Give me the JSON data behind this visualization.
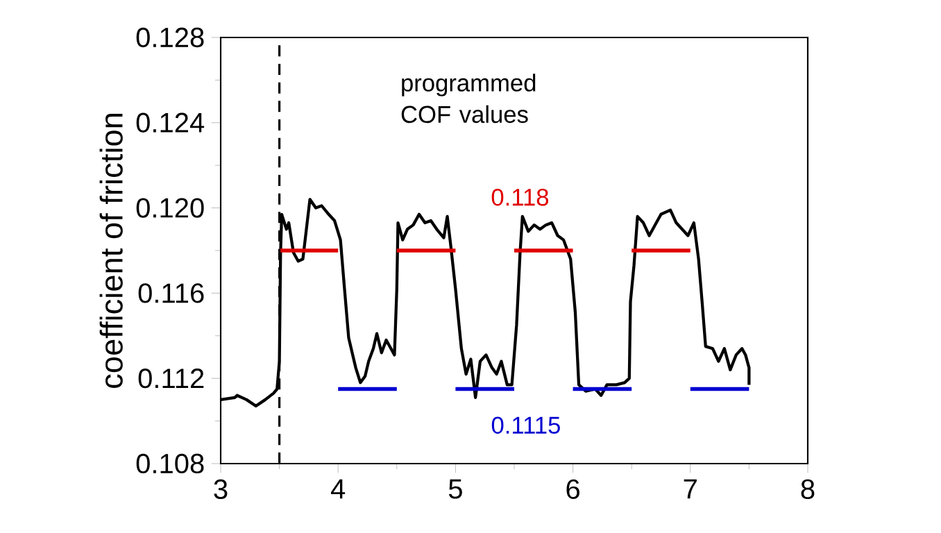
{
  "chart_data": {
    "type": "line",
    "ylabel": "coefficient of friction",
    "xlim": [
      3,
      8
    ],
    "xticks": [
      3,
      4,
      5,
      6,
      7,
      8
    ],
    "ylim": [
      0.108,
      0.128
    ],
    "yticks": [
      0.108,
      0.112,
      0.116,
      {
        "value": 0.12,
        "label": "0.120"
      },
      0.124,
      0.128
    ],
    "grid": false,
    "marker": "none",
    "ref_lines": [
      {
        "axis": "x",
        "value": 3.5,
        "color": "#000000",
        "line_style": "dashed"
      }
    ],
    "annotations": [
      "programmed COF values",
      "0.118",
      "0.1115"
    ],
    "series": [
      {
        "color": "#000000",
        "line_style": "solid",
        "x": [
          3.0,
          3.12,
          3.14,
          3.22,
          3.3,
          3.38,
          3.45,
          3.48,
          3.5,
          3.51,
          3.52,
          3.56,
          3.58,
          3.62,
          3.66,
          3.7,
          3.73,
          3.76,
          3.81,
          3.86,
          3.92,
          3.97,
          4.02,
          4.05,
          4.09,
          4.15,
          4.19,
          4.23,
          4.26,
          4.3,
          4.33,
          4.37,
          4.41,
          4.45,
          4.48,
          4.5,
          4.51,
          4.55,
          4.59,
          4.64,
          4.69,
          4.74,
          4.79,
          4.84,
          4.9,
          4.93,
          4.96,
          5.0,
          5.05,
          5.09,
          5.13,
          5.17,
          5.21,
          5.26,
          5.31,
          5.35,
          5.39,
          5.44,
          5.48,
          5.52,
          5.55,
          5.57,
          5.62,
          5.67,
          5.72,
          5.77,
          5.82,
          5.87,
          5.92,
          5.98,
          6.02,
          6.05,
          6.11,
          6.19,
          6.24,
          6.29,
          6.37,
          6.44,
          6.48,
          6.49,
          6.52,
          6.55,
          6.6,
          6.65,
          6.7,
          6.75,
          6.83,
          6.88,
          6.93,
          6.98,
          7.03,
          7.07,
          7.1,
          7.13,
          7.19,
          7.24,
          7.29,
          7.34,
          7.39,
          7.44,
          7.47,
          7.5,
          7.5
        ],
        "values": [
          0.111,
          0.1111,
          0.1112,
          0.111,
          0.1107,
          0.111,
          0.1113,
          0.1115,
          0.1128,
          0.1179,
          0.1197,
          0.119,
          0.1193,
          0.1179,
          0.1175,
          0.1176,
          0.119,
          0.1204,
          0.12,
          0.1201,
          0.1197,
          0.1194,
          0.1185,
          0.1165,
          0.1139,
          0.1125,
          0.1118,
          0.1121,
          0.1128,
          0.1134,
          0.1141,
          0.1132,
          0.1138,
          0.1134,
          0.1131,
          0.1162,
          0.1193,
          0.1185,
          0.119,
          0.1192,
          0.1197,
          0.1193,
          0.1194,
          0.119,
          0.1186,
          0.1196,
          0.1182,
          0.1162,
          0.1134,
          0.1122,
          0.1129,
          0.1111,
          0.1128,
          0.1131,
          0.1125,
          0.1122,
          0.1128,
          0.1117,
          0.1117,
          0.1145,
          0.1179,
          0.1196,
          0.1189,
          0.1192,
          0.119,
          0.1192,
          0.1193,
          0.1187,
          0.1185,
          0.1176,
          0.1151,
          0.1117,
          0.1114,
          0.1115,
          0.1112,
          0.1117,
          0.1117,
          0.1118,
          0.112,
          0.1156,
          0.1173,
          0.1196,
          0.1193,
          0.1187,
          0.1192,
          0.1197,
          0.1199,
          0.1193,
          0.119,
          0.1187,
          0.1193,
          0.1176,
          0.1156,
          0.1135,
          0.1134,
          0.1128,
          0.1134,
          0.1124,
          0.1131,
          0.1134,
          0.1131,
          0.1125,
          0.1117
        ]
      },
      {
        "color": "#e00000",
        "line_style": "solid",
        "x": [
          3.5,
          4,
          4.25,
          4.5,
          5,
          5.25,
          5.5,
          6,
          6.25,
          6.5,
          7
        ],
        "values": [
          0.118,
          0.118,
          null,
          0.118,
          0.118,
          null,
          0.118,
          0.118,
          null,
          0.118,
          0.118
        ]
      },
      {
        "color": "#0000d0",
        "line_style": "solid",
        "x": [
          4,
          4.5,
          4.75,
          5,
          5.5,
          5.75,
          6,
          6.5,
          6.75,
          7,
          7.5
        ],
        "values": [
          0.1115,
          0.1115,
          null,
          0.1115,
          0.1115,
          null,
          0.1115,
          0.1115,
          null,
          0.1115,
          0.1115
        ]
      }
    ]
  }
}
